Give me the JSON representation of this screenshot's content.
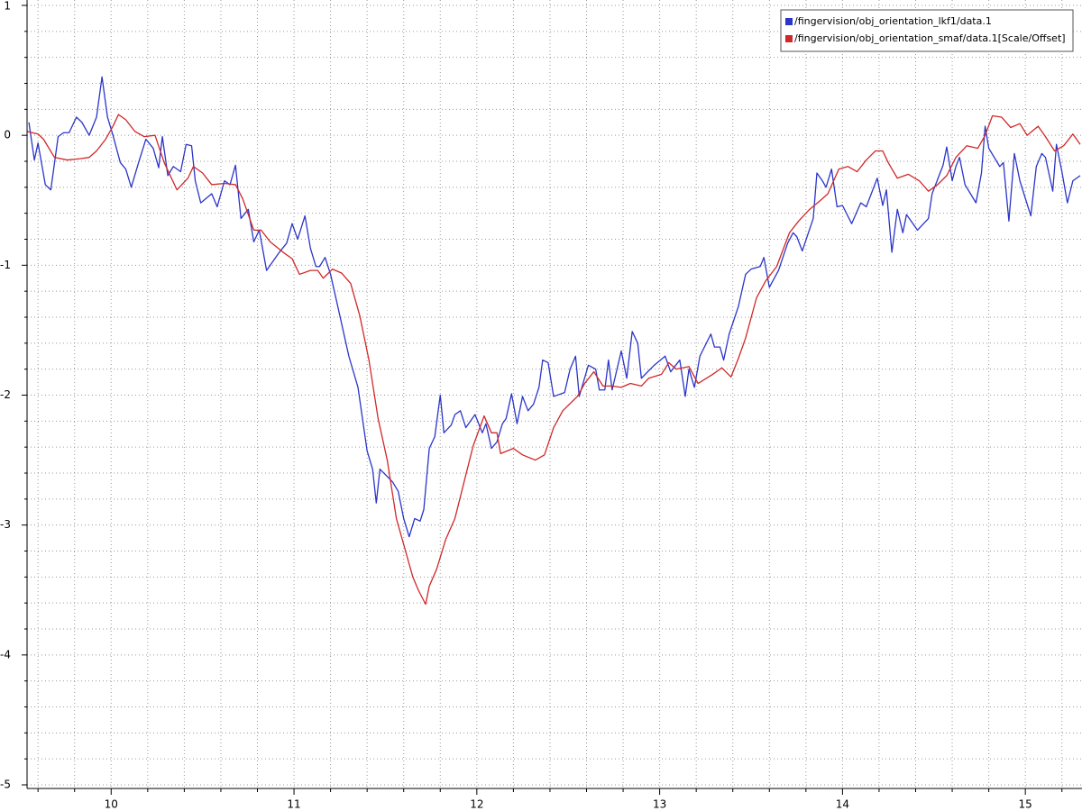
{
  "chart_data": {
    "type": "line",
    "xlim": [
      9.54,
      15.3
    ],
    "ylim": [
      -5,
      1
    ],
    "xticks": [
      10,
      11,
      12,
      13,
      14,
      15
    ],
    "yticks": [
      -5,
      -4,
      -3,
      -2,
      -1,
      0,
      1
    ],
    "xminorticks": [
      9.6,
      9.8,
      10.2,
      10.4,
      10.6,
      10.8,
      11.2,
      11.4,
      11.6,
      11.8,
      12.2,
      12.4,
      12.6,
      12.8,
      13.2,
      13.4,
      13.6,
      13.8,
      14.2,
      14.4,
      14.6,
      14.8,
      15.2
    ],
    "yminorticks": [
      -4.8,
      -4.6,
      -4.4,
      -4.2,
      -3.8,
      -3.6,
      -3.4,
      -3.2,
      -2.8,
      -2.6,
      -2.4,
      -2.2,
      -1.8,
      -1.6,
      -1.4,
      -1.2,
      -0.8,
      -0.6,
      -0.4,
      -0.2,
      0.2,
      0.4,
      0.6,
      0.8
    ],
    "grid": true,
    "legend": "top-right",
    "series": [
      {
        "name": "/fingervision/obj_orientation_lkf1/data.1",
        "color": "#2b35c8",
        "x": [
          9.55,
          9.58,
          9.6,
          9.64,
          9.67,
          9.71,
          9.74,
          9.77,
          9.81,
          9.84,
          9.88,
          9.92,
          9.95,
          9.98,
          10.01,
          10.05,
          10.08,
          10.11,
          10.15,
          10.19,
          10.23,
          10.26,
          10.28,
          10.31,
          10.34,
          10.38,
          10.41,
          10.44,
          10.46,
          10.49,
          10.55,
          10.58,
          10.62,
          10.65,
          10.68,
          10.71,
          10.75,
          10.78,
          10.81,
          10.85,
          10.92,
          10.96,
          10.99,
          11.02,
          11.06,
          11.09,
          11.12,
          11.14,
          11.17,
          11.2,
          11.24,
          11.3,
          11.35,
          11.4,
          11.43,
          11.45,
          11.47,
          11.52,
          11.54,
          11.57,
          11.6,
          11.63,
          11.66,
          11.69,
          11.71,
          11.74,
          11.77,
          11.8,
          11.82,
          11.86,
          11.88,
          11.91,
          11.94,
          11.99,
          12.03,
          12.05,
          12.08,
          12.11,
          12.14,
          12.16,
          12.19,
          12.22,
          12.25,
          12.28,
          12.31,
          12.34,
          12.36,
          12.39,
          12.42,
          12.48,
          12.51,
          12.54,
          12.56,
          12.61,
          12.65,
          12.67,
          12.7,
          12.72,
          12.74,
          12.79,
          12.82,
          12.85,
          12.88,
          12.9,
          12.97,
          13.03,
          13.06,
          13.11,
          13.14,
          13.16,
          13.19,
          13.22,
          13.28,
          13.3,
          13.33,
          13.35,
          13.38,
          13.43,
          13.47,
          13.5,
          13.55,
          13.57,
          13.6,
          13.65,
          13.7,
          13.73,
          13.75,
          13.78,
          13.84,
          13.86,
          13.89,
          13.91,
          13.94,
          13.97,
          14.0,
          14.05,
          14.1,
          14.13,
          14.19,
          14.22,
          14.24,
          14.27,
          14.3,
          14.33,
          14.35,
          14.41,
          14.47,
          14.49,
          14.55,
          14.57,
          14.6,
          14.62,
          14.64,
          14.67,
          14.73,
          14.76,
          14.78,
          14.8,
          14.86,
          14.88,
          14.91,
          14.94,
          14.97,
          15.03,
          15.06,
          15.09,
          15.11,
          15.15,
          15.17,
          15.2,
          15.23,
          15.26,
          15.3
        ],
        "values": [
          0.1,
          -0.19,
          -0.06,
          -0.38,
          -0.42,
          -0.01,
          0.02,
          0.02,
          0.14,
          0.1,
          0.0,
          0.14,
          0.45,
          0.14,
          0.0,
          -0.21,
          -0.26,
          -0.4,
          -0.21,
          -0.03,
          -0.1,
          -0.25,
          -0.01,
          -0.31,
          -0.24,
          -0.28,
          -0.07,
          -0.08,
          -0.35,
          -0.52,
          -0.45,
          -0.55,
          -0.35,
          -0.38,
          -0.23,
          -0.64,
          -0.57,
          -0.82,
          -0.73,
          -1.04,
          -0.9,
          -0.83,
          -0.68,
          -0.8,
          -0.62,
          -0.87,
          -1.01,
          -1.01,
          -0.94,
          -1.07,
          -1.32,
          -1.7,
          -1.94,
          -2.43,
          -2.57,
          -2.83,
          -2.57,
          -2.64,
          -2.67,
          -2.74,
          -2.95,
          -3.09,
          -2.95,
          -2.97,
          -2.88,
          -2.41,
          -2.32,
          -2.0,
          -2.29,
          -2.23,
          -2.15,
          -2.12,
          -2.25,
          -2.15,
          -2.29,
          -2.22,
          -2.41,
          -2.36,
          -2.22,
          -2.18,
          -1.99,
          -2.22,
          -2.01,
          -2.12,
          -2.07,
          -1.94,
          -1.73,
          -1.75,
          -2.01,
          -1.98,
          -1.8,
          -1.7,
          -2.01,
          -1.77,
          -1.8,
          -1.96,
          -1.96,
          -1.73,
          -1.96,
          -1.66,
          -1.87,
          -1.51,
          -1.6,
          -1.87,
          -1.77,
          -1.7,
          -1.82,
          -1.73,
          -2.01,
          -1.8,
          -1.94,
          -1.7,
          -1.53,
          -1.63,
          -1.63,
          -1.73,
          -1.53,
          -1.32,
          -1.07,
          -1.03,
          -1.01,
          -0.94,
          -1.17,
          -1.04,
          -0.83,
          -0.75,
          -0.78,
          -0.89,
          -0.64,
          -0.29,
          -0.35,
          -0.4,
          -0.26,
          -0.55,
          -0.54,
          -0.68,
          -0.52,
          -0.55,
          -0.33,
          -0.54,
          -0.42,
          -0.9,
          -0.57,
          -0.75,
          -0.61,
          -0.73,
          -0.64,
          -0.45,
          -0.23,
          -0.09,
          -0.35,
          -0.24,
          -0.17,
          -0.38,
          -0.52,
          -0.29,
          0.07,
          -0.1,
          -0.24,
          -0.21,
          -0.66,
          -0.14,
          -0.35,
          -0.62,
          -0.24,
          -0.14,
          -0.17,
          -0.43,
          -0.07,
          -0.28,
          -0.52,
          -0.35,
          -0.31
        ]
      },
      {
        "name": "/fingervision/obj_orientation_smaf/data.1[Scale/Offset]",
        "color": "#d02828",
        "x": [
          9.54,
          9.6,
          9.63,
          9.69,
          9.76,
          9.83,
          9.88,
          9.92,
          9.97,
          10.01,
          10.04,
          10.08,
          10.13,
          10.18,
          10.24,
          10.29,
          10.36,
          10.42,
          10.45,
          10.5,
          10.55,
          10.62,
          10.68,
          10.72,
          10.78,
          10.82,
          10.87,
          10.94,
          10.99,
          11.03,
          11.09,
          11.13,
          11.16,
          11.21,
          11.26,
          11.31,
          11.36,
          11.41,
          11.46,
          11.51,
          11.56,
          11.61,
          11.65,
          11.68,
          11.72,
          11.74,
          11.78,
          11.83,
          11.88,
          11.93,
          11.98,
          12.04,
          12.08,
          12.11,
          12.13,
          12.2,
          12.25,
          12.32,
          12.37,
          12.42,
          12.47,
          12.55,
          12.59,
          12.64,
          12.69,
          12.74,
          12.79,
          12.84,
          12.9,
          12.94,
          13.01,
          13.05,
          13.09,
          13.16,
          13.21,
          13.29,
          13.34,
          13.39,
          13.43,
          13.47,
          13.53,
          13.58,
          13.64,
          13.71,
          13.76,
          13.82,
          13.88,
          13.92,
          13.98,
          14.03,
          14.08,
          14.13,
          14.18,
          14.22,
          14.25,
          14.3,
          14.36,
          14.42,
          14.47,
          14.52,
          14.57,
          14.62,
          14.68,
          14.74,
          14.78,
          14.82,
          14.87,
          14.92,
          14.97,
          15.01,
          15.07,
          15.11,
          15.16,
          15.21,
          15.26,
          15.3
        ],
        "values": [
          0.03,
          0.01,
          -0.03,
          -0.17,
          -0.19,
          -0.18,
          -0.17,
          -0.12,
          -0.03,
          0.07,
          0.16,
          0.12,
          0.03,
          -0.01,
          0.0,
          -0.21,
          -0.42,
          -0.33,
          -0.24,
          -0.29,
          -0.38,
          -0.37,
          -0.38,
          -0.49,
          -0.73,
          -0.73,
          -0.82,
          -0.9,
          -0.95,
          -1.07,
          -1.04,
          -1.04,
          -1.1,
          -1.03,
          -1.06,
          -1.14,
          -1.39,
          -1.73,
          -2.18,
          -2.5,
          -2.95,
          -3.2,
          -3.4,
          -3.5,
          -3.61,
          -3.47,
          -3.34,
          -3.11,
          -2.95,
          -2.67,
          -2.39,
          -2.16,
          -2.29,
          -2.29,
          -2.45,
          -2.41,
          -2.46,
          -2.5,
          -2.46,
          -2.25,
          -2.12,
          -2.01,
          -1.91,
          -1.82,
          -1.93,
          -1.93,
          -1.94,
          -1.91,
          -1.93,
          -1.87,
          -1.84,
          -1.75,
          -1.8,
          -1.78,
          -1.91,
          -1.84,
          -1.79,
          -1.86,
          -1.72,
          -1.56,
          -1.25,
          -1.12,
          -1.01,
          -0.75,
          -0.66,
          -0.57,
          -0.5,
          -0.45,
          -0.26,
          -0.24,
          -0.28,
          -0.19,
          -0.12,
          -0.12,
          -0.21,
          -0.33,
          -0.3,
          -0.35,
          -0.43,
          -0.38,
          -0.31,
          -0.17,
          -0.08,
          -0.1,
          0.0,
          0.15,
          0.14,
          0.06,
          0.09,
          0.0,
          0.07,
          -0.01,
          -0.12,
          -0.08,
          0.01,
          -0.07
        ]
      }
    ]
  }
}
